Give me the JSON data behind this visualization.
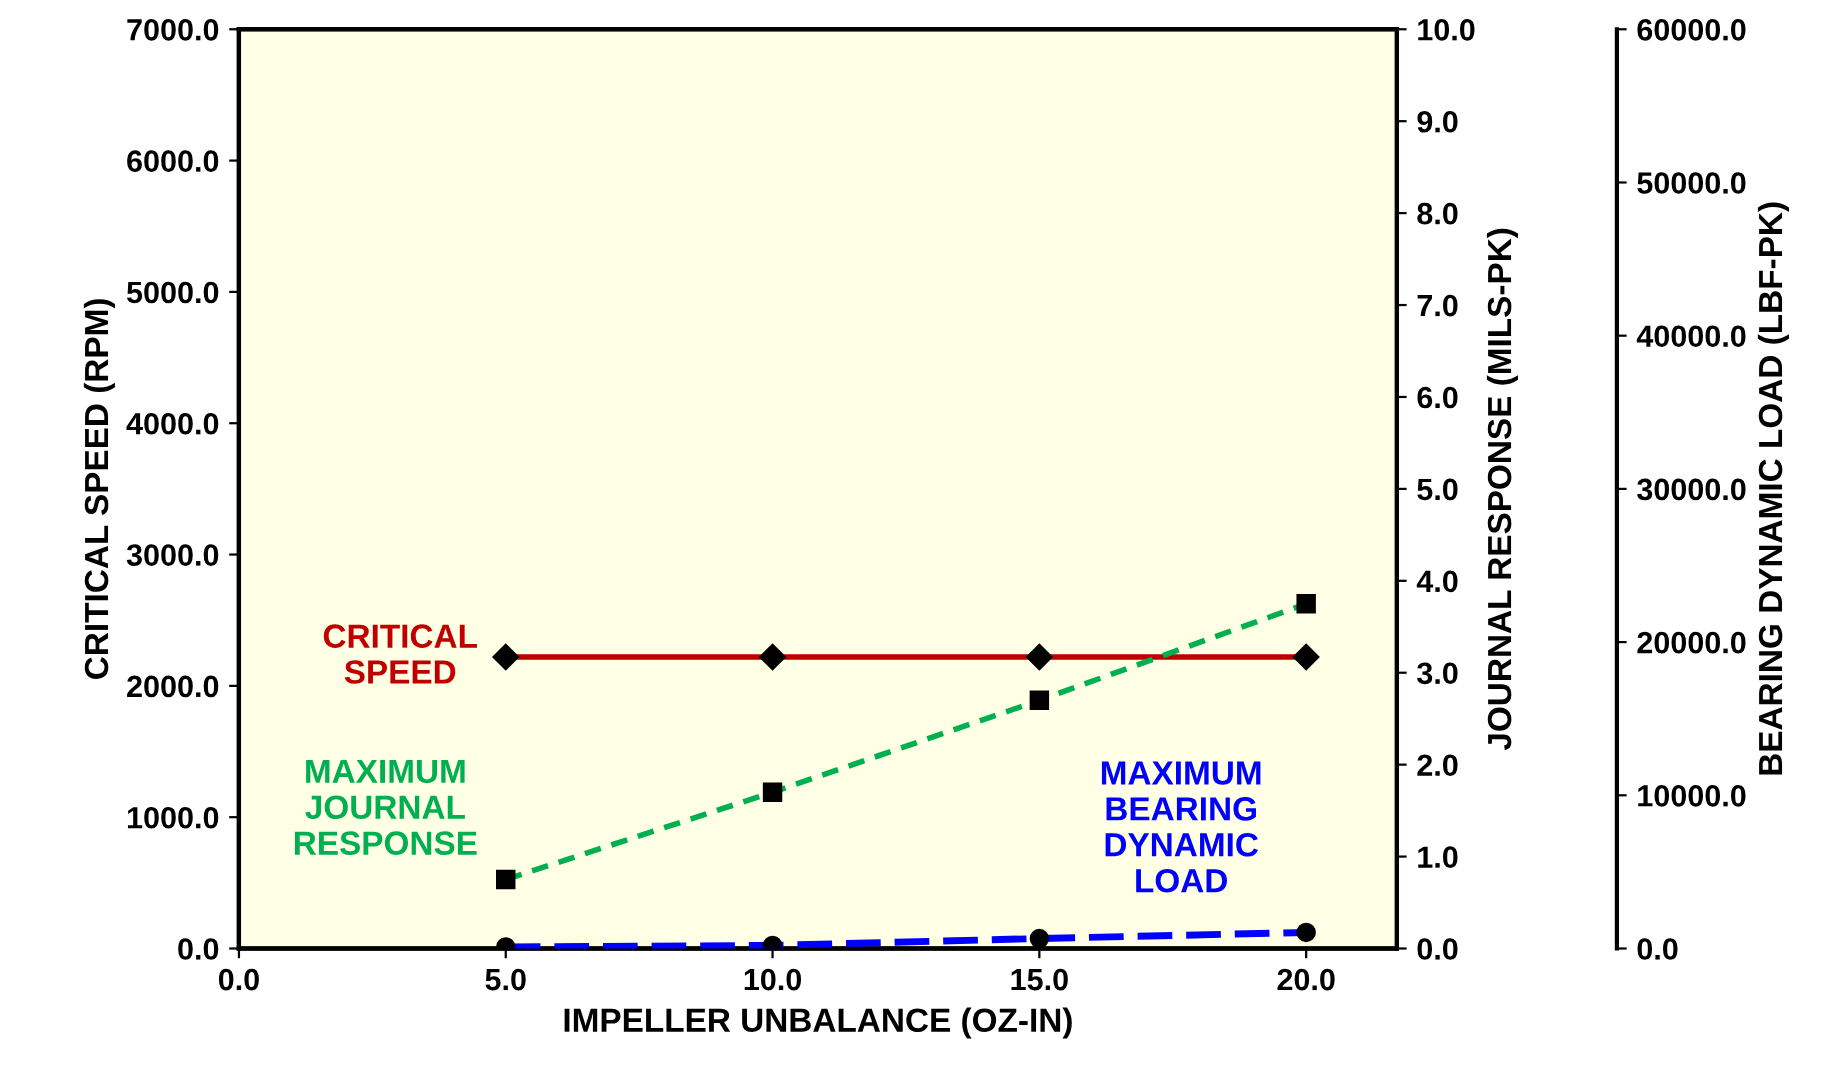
{
  "chart_data": {
    "type": "line",
    "xlabel": "IMPELLER UNBALANCE (OZ-IN)",
    "ylabel": "CRITICAL SPEED (RPM)",
    "y2label": "JOURNAL RESPONSE (MILS-PK)",
    "y3label": "BEARING DYNAMIC LOAD (LBF-PK)",
    "x": [
      5,
      10,
      15,
      20
    ],
    "xlim": [
      0,
      21.7
    ],
    "xticks": [
      {
        "value": 0,
        "label": "0.0"
      },
      {
        "value": 5,
        "label": "5.0"
      },
      {
        "value": 10,
        "label": "10.0"
      },
      {
        "value": 15,
        "label": "15.0"
      },
      {
        "value": 20,
        "label": "20.0"
      }
    ],
    "ylim": [
      0,
      7000
    ],
    "yticks": [
      {
        "value": 0,
        "label": "0.0"
      },
      {
        "value": 1000,
        "label": "1000.0"
      },
      {
        "value": 2000,
        "label": "2000.0"
      },
      {
        "value": 3000,
        "label": "3000.0"
      },
      {
        "value": 4000,
        "label": "4000.0"
      },
      {
        "value": 5000,
        "label": "5000.0"
      },
      {
        "value": 6000,
        "label": "6000.0"
      },
      {
        "value": 7000,
        "label": "7000.0"
      }
    ],
    "y2lim": [
      0,
      10
    ],
    "y2ticks": [
      {
        "value": 0,
        "label": "0.0"
      },
      {
        "value": 1,
        "label": "1.0"
      },
      {
        "value": 2,
        "label": "2.0"
      },
      {
        "value": 3,
        "label": "3.0"
      },
      {
        "value": 4,
        "label": "4.0"
      },
      {
        "value": 5,
        "label": "5.0"
      },
      {
        "value": 6,
        "label": "6.0"
      },
      {
        "value": 7,
        "label": "7.0"
      },
      {
        "value": 8,
        "label": "8.0"
      },
      {
        "value": 9,
        "label": "9.0"
      },
      {
        "value": 10,
        "label": "10.0"
      }
    ],
    "y3lim": [
      0,
      60000
    ],
    "y3ticks": [
      {
        "value": 0,
        "label": "0.0"
      },
      {
        "value": 10000,
        "label": "10000.0"
      },
      {
        "value": 20000,
        "label": "20000.0"
      },
      {
        "value": 30000,
        "label": "30000.0"
      },
      {
        "value": 40000,
        "label": "40000.0"
      },
      {
        "value": 50000,
        "label": "50000.0"
      },
      {
        "value": 60000,
        "label": "60000.0"
      }
    ],
    "series": [
      {
        "name": "CRITICAL SPEED",
        "color": "#c00000",
        "marker": "diamond",
        "line_style": "solid",
        "values": [
          2220,
          2220,
          2220,
          2220
        ]
      },
      {
        "name": "MAXIMUM JOURNAL RESPONSE",
        "color": "#00b050",
        "marker": "square",
        "line_style": "dashed",
        "axis": "y2",
        "values": [
          0.75,
          1.7,
          2.7,
          3.75
        ]
      },
      {
        "name": "MAXIMUM BEARING DYNAMIC LOAD",
        "color": "#0000ff",
        "marker": "circle",
        "line_style": "dashed",
        "axis": "y3",
        "values": [
          100,
          200,
          650,
          1050
        ]
      }
    ]
  }
}
